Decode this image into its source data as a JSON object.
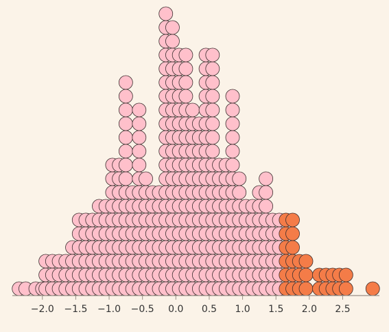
{
  "chart_data": {
    "type": "dot-histogram",
    "title": "",
    "xlabel": "",
    "ylabel": "",
    "xlim": [
      -2.45,
      3.05
    ],
    "xticks": [
      -2.0,
      -1.5,
      -1.0,
      -0.5,
      0.0,
      0.5,
      1.0,
      1.5,
      2.0,
      2.5
    ],
    "xtick_labels": [
      "−2.0",
      "−1.5",
      "−1.0",
      "−0.5",
      "0.0",
      "0.5",
      "1.0",
      "1.5",
      "2.0",
      "2.5"
    ],
    "threshold": 1.6,
    "series": [
      {
        "values": [
          -2.35,
          -2.25,
          -2.1,
          -2.0,
          -1.95,
          -1.95,
          -1.95,
          -1.85,
          -1.85,
          -1.85,
          -1.75,
          -1.75,
          -1.75,
          -1.65,
          -1.65,
          -1.65,
          -1.55,
          -1.55,
          -1.55,
          -1.55,
          -1.45,
          -1.45,
          -1.45,
          -1.45,
          -1.45,
          -1.45,
          -1.35,
          -1.35,
          -1.35,
          -1.35,
          -1.35,
          -1.35,
          -1.25,
          -1.25,
          -1.25,
          -1.25,
          -1.25,
          -1.25,
          -1.15,
          -1.15,
          -1.15,
          -1.15,
          -1.15,
          -1.15,
          -1.15,
          -1.05,
          -1.05,
          -1.05,
          -1.05,
          -1.05,
          -1.05,
          -1.05,
          -0.95,
          -0.95,
          -0.95,
          -0.95,
          -0.95,
          -0.95,
          -0.95,
          -0.95,
          -0.95,
          -0.95,
          -0.85,
          -0.85,
          -0.85,
          -0.85,
          -0.85,
          -0.85,
          -0.85,
          -0.85,
          -0.85,
          -0.85,
          -0.75,
          -0.75,
          -0.75,
          -0.75,
          -0.75,
          -0.75,
          -0.75,
          -0.75,
          -0.75,
          -0.75,
          -0.75,
          -0.75,
          -0.75,
          -0.75,
          -0.75,
          -0.75,
          -0.65,
          -0.65,
          -0.65,
          -0.65,
          -0.65,
          -0.65,
          -0.65,
          -0.65,
          -0.55,
          -0.55,
          -0.55,
          -0.55,
          -0.55,
          -0.55,
          -0.55,
          -0.55,
          -0.55,
          -0.55,
          -0.55,
          -0.55,
          -0.55,
          -0.55,
          -0.45,
          -0.45,
          -0.45,
          -0.45,
          -0.45,
          -0.45,
          -0.45,
          -0.45,
          -0.45,
          -0.35,
          -0.35,
          -0.35,
          -0.35,
          -0.35,
          -0.35,
          -0.35,
          -0.35,
          -0.25,
          -0.25,
          -0.25,
          -0.25,
          -0.25,
          -0.25,
          -0.25,
          -0.25,
          -0.15,
          -0.15,
          -0.15,
          -0.15,
          -0.15,
          -0.15,
          -0.15,
          -0.15,
          -0.15,
          -0.15,
          -0.15,
          -0.15,
          -0.15,
          -0.15,
          -0.15,
          -0.15,
          -0.15,
          -0.15,
          -0.15,
          -0.15,
          -0.15,
          -0.05,
          -0.05,
          -0.05,
          -0.05,
          -0.05,
          -0.05,
          -0.05,
          -0.05,
          -0.05,
          -0.05,
          -0.05,
          -0.05,
          -0.05,
          -0.05,
          -0.05,
          -0.05,
          -0.05,
          -0.05,
          -0.05,
          -0.05,
          0.05,
          0.05,
          0.05,
          0.05,
          0.05,
          0.05,
          0.05,
          0.05,
          0.05,
          0.05,
          0.05,
          0.05,
          0.05,
          0.05,
          0.05,
          0.05,
          0.05,
          0.05,
          0.15,
          0.15,
          0.15,
          0.15,
          0.15,
          0.15,
          0.15,
          0.15,
          0.15,
          0.15,
          0.15,
          0.15,
          0.15,
          0.15,
          0.15,
          0.15,
          0.15,
          0.15,
          0.25,
          0.25,
          0.25,
          0.25,
          0.25,
          0.25,
          0.25,
          0.25,
          0.25,
          0.25,
          0.25,
          0.25,
          0.25,
          0.25,
          0.35,
          0.35,
          0.35,
          0.35,
          0.35,
          0.35,
          0.35,
          0.35,
          0.35,
          0.35,
          0.35,
          0.35,
          0.35,
          0.45,
          0.45,
          0.45,
          0.45,
          0.45,
          0.45,
          0.45,
          0.45,
          0.45,
          0.45,
          0.45,
          0.45,
          0.45,
          0.45,
          0.45,
          0.45,
          0.45,
          0.45,
          0.55,
          0.55,
          0.55,
          0.55,
          0.55,
          0.55,
          0.55,
          0.55,
          0.55,
          0.55,
          0.55,
          0.55,
          0.55,
          0.55,
          0.55,
          0.55,
          0.55,
          0.55,
          0.65,
          0.65,
          0.65,
          0.65,
          0.65,
          0.65,
          0.65,
          0.65,
          0.65,
          0.65,
          0.75,
          0.75,
          0.75,
          0.75,
          0.75,
          0.75,
          0.75,
          0.75,
          0.75,
          0.75,
          0.85,
          0.85,
          0.85,
          0.85,
          0.85,
          0.85,
          0.85,
          0.85,
          0.85,
          0.85,
          0.85,
          0.85,
          0.85,
          0.85,
          0.85,
          0.95,
          0.95,
          0.95,
          0.95,
          0.95,
          0.95,
          0.95,
          0.95,
          0.95,
          1.05,
          1.05,
          1.05,
          1.05,
          1.05,
          1.05,
          1.05,
          1.15,
          1.15,
          1.15,
          1.15,
          1.15,
          1.15,
          1.15,
          1.25,
          1.25,
          1.25,
          1.25,
          1.25,
          1.25,
          1.25,
          1.25,
          1.35,
          1.35,
          1.35,
          1.35,
          1.35,
          1.35,
          1.35,
          1.35,
          1.35,
          1.45,
          1.45,
          1.45,
          1.45,
          1.45,
          1.45,
          1.55,
          1.55,
          1.55,
          1.55,
          1.55,
          1.55
        ],
        "color": "#ffc0cb"
      },
      {
        "values": [
          1.65,
          1.65,
          1.65,
          1.65,
          1.65,
          1.65,
          1.75,
          1.75,
          1.75,
          1.75,
          1.75,
          1.75,
          1.85,
          1.85,
          1.85,
          1.95,
          1.95,
          1.95,
          2.15,
          2.15,
          2.25,
          2.25,
          2.35,
          2.35,
          2.45,
          2.45,
          2.55,
          2.55,
          2.95
        ],
        "color": "#f47c48"
      }
    ],
    "dot_outline_color": "#3b2f2f",
    "background": "#fbf3e8"
  }
}
